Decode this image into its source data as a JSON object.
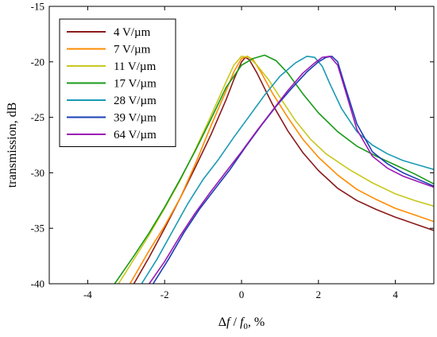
{
  "chart_data": {
    "type": "line",
    "title": "",
    "xlabel_parts": [
      "Δ",
      "f",
      " / ",
      "f",
      "0",
      ", %"
    ],
    "ylabel": "transmission, dB",
    "xlim": [
      -5,
      5
    ],
    "ylim": [
      -40,
      -15
    ],
    "x_ticks": [
      -4,
      -2,
      0,
      2,
      4
    ],
    "x_tick_labels": [
      "-4",
      "-2",
      "0",
      "2",
      "4"
    ],
    "y_ticks": [
      -40,
      -35,
      -30,
      -25,
      -20,
      -15
    ],
    "y_tick_labels": [
      "-40",
      "-35",
      "-30",
      "-25",
      "-20",
      "-15"
    ],
    "grid": false,
    "legend_position": "top-left",
    "series": [
      {
        "name": "4 V/µm",
        "color": "#8b1a1a",
        "x": [
          -2.8,
          -2.4,
          -2.0,
          -1.6,
          -1.2,
          -0.8,
          -0.4,
          -0.2,
          0.0,
          0.1,
          0.2,
          0.4,
          0.8,
          1.2,
          1.6,
          2.0,
          2.5,
          3.0,
          3.5,
          4.0,
          4.5,
          5.0
        ],
        "y": [
          -40.0,
          -37.6,
          -35.0,
          -32.3,
          -29.5,
          -26.6,
          -23.4,
          -21.6,
          -20.0,
          -19.6,
          -19.8,
          -21.0,
          -23.8,
          -26.2,
          -28.2,
          -29.8,
          -31.4,
          -32.5,
          -33.3,
          -34.0,
          -34.6,
          -35.2
        ]
      },
      {
        "name": "7 V/µm",
        "color": "#ff8c00",
        "x": [
          -2.9,
          -2.4,
          -2.0,
          -1.6,
          -1.2,
          -0.8,
          -0.4,
          -0.2,
          0.0,
          0.15,
          0.3,
          0.5,
          0.8,
          1.2,
          1.6,
          2.0,
          2.5,
          3.0,
          3.5,
          4.0,
          4.5,
          5.0
        ],
        "y": [
          -40.0,
          -37.0,
          -34.8,
          -32.3,
          -29.2,
          -25.8,
          -22.6,
          -20.9,
          -19.7,
          -19.5,
          -19.8,
          -20.9,
          -22.8,
          -25.0,
          -27.0,
          -28.6,
          -30.2,
          -31.5,
          -32.4,
          -33.2,
          -33.8,
          -34.4
        ]
      },
      {
        "name": "11 V/µm",
        "color": "#c8c820",
        "x": [
          -3.2,
          -2.8,
          -2.4,
          -2.0,
          -1.6,
          -1.2,
          -0.8,
          -0.4,
          -0.2,
          0.0,
          0.2,
          0.4,
          0.7,
          1.0,
          1.4,
          1.8,
          2.2,
          2.8,
          3.4,
          4.0,
          4.5,
          5.0
        ],
        "y": [
          -40.0,
          -37.8,
          -35.6,
          -33.2,
          -30.7,
          -27.9,
          -24.9,
          -21.8,
          -20.3,
          -19.5,
          -19.6,
          -20.3,
          -21.6,
          -23.2,
          -25.3,
          -27.0,
          -28.3,
          -29.7,
          -30.9,
          -31.9,
          -32.5,
          -33.0
        ]
      },
      {
        "name": "17 V/µm",
        "color": "#1a9a1a",
        "x": [
          -3.3,
          -2.8,
          -2.4,
          -2.0,
          -1.6,
          -1.2,
          -0.8,
          -0.4,
          0.0,
          0.3,
          0.6,
          0.9,
          1.2,
          1.6,
          2.0,
          2.5,
          3.0,
          3.5,
          4.0,
          4.5,
          5.0
        ],
        "y": [
          -40.0,
          -37.5,
          -35.4,
          -33.1,
          -30.6,
          -28.0,
          -25.2,
          -22.3,
          -20.3,
          -19.7,
          -19.4,
          -19.9,
          -21.0,
          -22.9,
          -24.6,
          -26.3,
          -27.6,
          -28.5,
          -29.3,
          -30.1,
          -31.0
        ]
      },
      {
        "name": "28 V/µm",
        "color": "#1a9ab4",
        "x": [
          -2.6,
          -2.2,
          -1.8,
          -1.4,
          -1.0,
          -0.6,
          -0.2,
          0.2,
          0.6,
          1.0,
          1.4,
          1.7,
          1.9,
          2.1,
          2.3,
          2.6,
          3.0,
          3.4,
          3.8,
          4.2,
          4.6,
          5.0
        ],
        "y": [
          -40.0,
          -37.8,
          -35.3,
          -32.8,
          -30.6,
          -28.8,
          -26.8,
          -24.9,
          -23.0,
          -21.3,
          -20.1,
          -19.5,
          -19.6,
          -20.4,
          -22.0,
          -24.2,
          -26.3,
          -27.5,
          -28.3,
          -28.9,
          -29.3,
          -29.7
        ]
      },
      {
        "name": "39 V/µm",
        "color": "#1a3fb4",
        "x": [
          -2.3,
          -1.9,
          -1.5,
          -1.1,
          -0.7,
          -0.3,
          0.1,
          0.5,
          0.9,
          1.3,
          1.7,
          2.0,
          2.2,
          2.35,
          2.5,
          2.7,
          3.0,
          3.4,
          3.8,
          4.2,
          4.6,
          5.0
        ],
        "y": [
          -40.0,
          -37.8,
          -35.4,
          -33.3,
          -31.5,
          -29.7,
          -27.7,
          -25.8,
          -24.0,
          -22.4,
          -20.9,
          -20.0,
          -19.6,
          -19.5,
          -20.0,
          -22.3,
          -25.6,
          -28.1,
          -29.2,
          -30.0,
          -30.6,
          -31.2
        ]
      },
      {
        "name": "64 V/µm",
        "color": "#9a1ab4",
        "x": [
          -2.4,
          -2.0,
          -1.6,
          -1.2,
          -0.8,
          -0.4,
          0.0,
          0.4,
          0.8,
          1.2,
          1.6,
          1.9,
          2.1,
          2.3,
          2.5,
          2.7,
          3.0,
          3.4,
          3.8,
          4.2,
          4.6,
          5.0
        ],
        "y": [
          -40.0,
          -38.0,
          -35.7,
          -33.6,
          -31.7,
          -29.9,
          -28.1,
          -26.2,
          -24.4,
          -22.6,
          -21.0,
          -20.1,
          -19.6,
          -19.5,
          -20.3,
          -22.6,
          -26.1,
          -28.5,
          -29.6,
          -30.3,
          -30.8,
          -31.3
        ]
      }
    ]
  }
}
